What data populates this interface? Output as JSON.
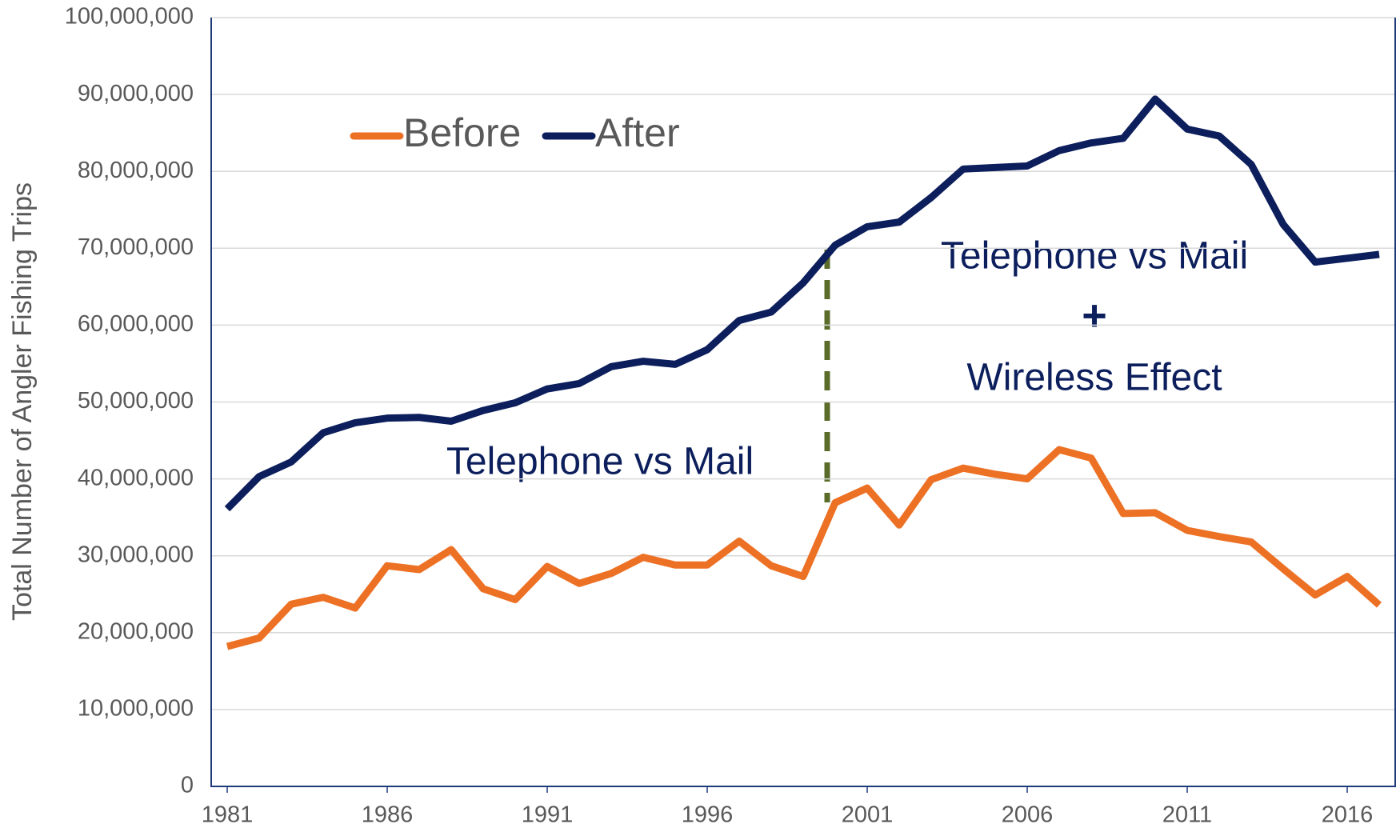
{
  "chart_data": {
    "type": "line",
    "y_label": "Total Number of Angler Fishing Trips",
    "x": [
      1981,
      1982,
      1983,
      1984,
      1985,
      1986,
      1987,
      1988,
      1989,
      1990,
      1991,
      1992,
      1993,
      1994,
      1995,
      1996,
      1997,
      1998,
      1999,
      2000,
      2001,
      2002,
      2003,
      2004,
      2005,
      2006,
      2007,
      2008,
      2009,
      2010,
      2011,
      2012,
      2013,
      2014,
      2015,
      2016,
      2017
    ],
    "series": [
      {
        "name": "Before",
        "color": "#ed7125",
        "values": [
          18200000,
          19300000,
          23700000,
          24600000,
          23200000,
          28700000,
          28200000,
          30800000,
          25700000,
          24300000,
          28600000,
          26400000,
          27700000,
          29800000,
          28800000,
          28800000,
          31900000,
          28700000,
          27300000,
          36900000,
          38800000,
          34000000,
          39900000,
          41400000,
          40600000,
          40000000,
          43800000,
          42700000,
          35500000,
          35600000,
          33300000,
          32500000,
          31800000,
          28300000,
          24900000,
          27300000,
          23600000
        ]
      },
      {
        "name": "After",
        "color": "#0c1f5c",
        "values": [
          36100000,
          40300000,
          42200000,
          46000000,
          47300000,
          47900000,
          48000000,
          47500000,
          48900000,
          49900000,
          51700000,
          52400000,
          54600000,
          55300000,
          54900000,
          56800000,
          60600000,
          61700000,
          65500000,
          70400000,
          72800000,
          73400000,
          76600000,
          80300000,
          80500000,
          80700000,
          82700000,
          83700000,
          84300000,
          89400000,
          85500000,
          84600000,
          80900000,
          73100000,
          68200000,
          68700000,
          69200000
        ]
      }
    ],
    "xlim": [
      1980.5,
      2017.5
    ],
    "xticks": [
      1981,
      1986,
      1991,
      1996,
      2001,
      2006,
      2011,
      2016
    ],
    "ylim": [
      0,
      100000000
    ],
    "yticks": [
      0,
      {
        "value": 10000000,
        "label": "10,000,000"
      },
      {
        "value": 20000000,
        "label": "20,000,000"
      },
      {
        "value": 30000000,
        "label": "30,000,000"
      },
      {
        "value": 40000000,
        "label": "40,000,000"
      },
      {
        "value": 50000000,
        "label": "50,000,000"
      },
      {
        "value": 60000000,
        "label": "60,000,000"
      },
      {
        "value": 70000000,
        "label": "70,000,000"
      },
      {
        "value": 80000000,
        "label": "80,000,000"
      },
      {
        "value": 90000000,
        "label": "90,000,000"
      },
      {
        "value": 100000000,
        "label": "100,000,000"
      }
    ],
    "grid": true,
    "legend": "top-left",
    "annotations": [
      "Telephone vs Mail",
      "Telephone vs Mail",
      "+",
      "Wireless Effect"
    ]
  }
}
